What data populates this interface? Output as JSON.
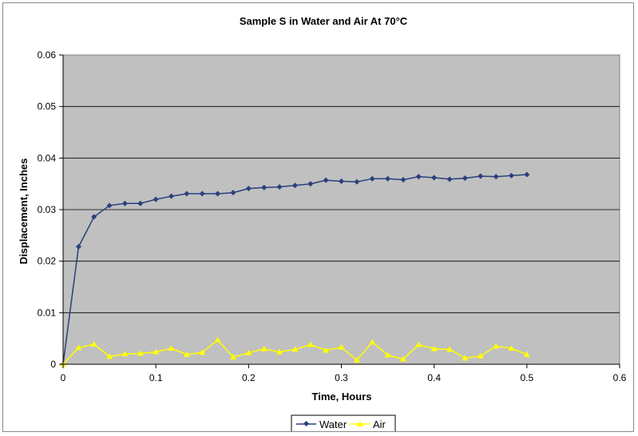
{
  "chart_data": {
    "type": "line",
    "title": "Sample S in Water and Air At 70°C",
    "xlabel": "Time, Hours",
    "ylabel": "Displacement, Inches",
    "xlim": [
      0,
      0.6
    ],
    "ylim": [
      0,
      0.06
    ],
    "x_ticks": [
      "0",
      "0.1",
      "0.2",
      "0.3",
      "0.4",
      "0.5",
      "0.6"
    ],
    "y_ticks": [
      "0",
      "0.01",
      "0.02",
      "0.03",
      "0.04",
      "0.05",
      "0.06"
    ],
    "grid": "horizontal",
    "plot_background": "#c0c0c0",
    "legend_position": "bottom",
    "series": [
      {
        "name": "Water",
        "color": "#2b3f7a",
        "marker": "diamond",
        "x": [
          0,
          0.0167,
          0.0333,
          0.05,
          0.0667,
          0.0833,
          0.1,
          0.1167,
          0.1333,
          0.15,
          0.1667,
          0.1833,
          0.2,
          0.2167,
          0.2333,
          0.25,
          0.2667,
          0.2833,
          0.3,
          0.3167,
          0.3333,
          0.35,
          0.3667,
          0.3833,
          0.4,
          0.4167,
          0.4333,
          0.45,
          0.4667,
          0.4833,
          0.5
        ],
        "y": [
          0,
          0.0228,
          0.0286,
          0.0308,
          0.0312,
          0.0312,
          0.032,
          0.0326,
          0.0331,
          0.0331,
          0.0331,
          0.0333,
          0.0341,
          0.0343,
          0.0344,
          0.0347,
          0.035,
          0.0357,
          0.0355,
          0.0354,
          0.036,
          0.036,
          0.0358,
          0.0364,
          0.0362,
          0.0359,
          0.0361,
          0.0365,
          0.0364,
          0.0366,
          0.0368
        ]
      },
      {
        "name": "Air",
        "color": "#ffff00",
        "marker": "triangle",
        "x": [
          0,
          0.0167,
          0.0333,
          0.05,
          0.0667,
          0.0833,
          0.1,
          0.1167,
          0.1333,
          0.15,
          0.1667,
          0.1833,
          0.2,
          0.2167,
          0.2333,
          0.25,
          0.2667,
          0.2833,
          0.3,
          0.3167,
          0.3333,
          0.35,
          0.3667,
          0.3833,
          0.4,
          0.4167,
          0.4333,
          0.45,
          0.4667,
          0.4833,
          0.5
        ],
        "y": [
          0,
          0.0032,
          0.0039,
          0.0015,
          0.002,
          0.0021,
          0.0024,
          0.0031,
          0.0019,
          0.0023,
          0.0047,
          0.0014,
          0.0022,
          0.003,
          0.0024,
          0.0029,
          0.0038,
          0.0027,
          0.0033,
          0.0008,
          0.0043,
          0.0018,
          0.001,
          0.0038,
          0.003,
          0.0029,
          0.0012,
          0.0016,
          0.0035,
          0.0031,
          0.0019
        ]
      }
    ]
  }
}
